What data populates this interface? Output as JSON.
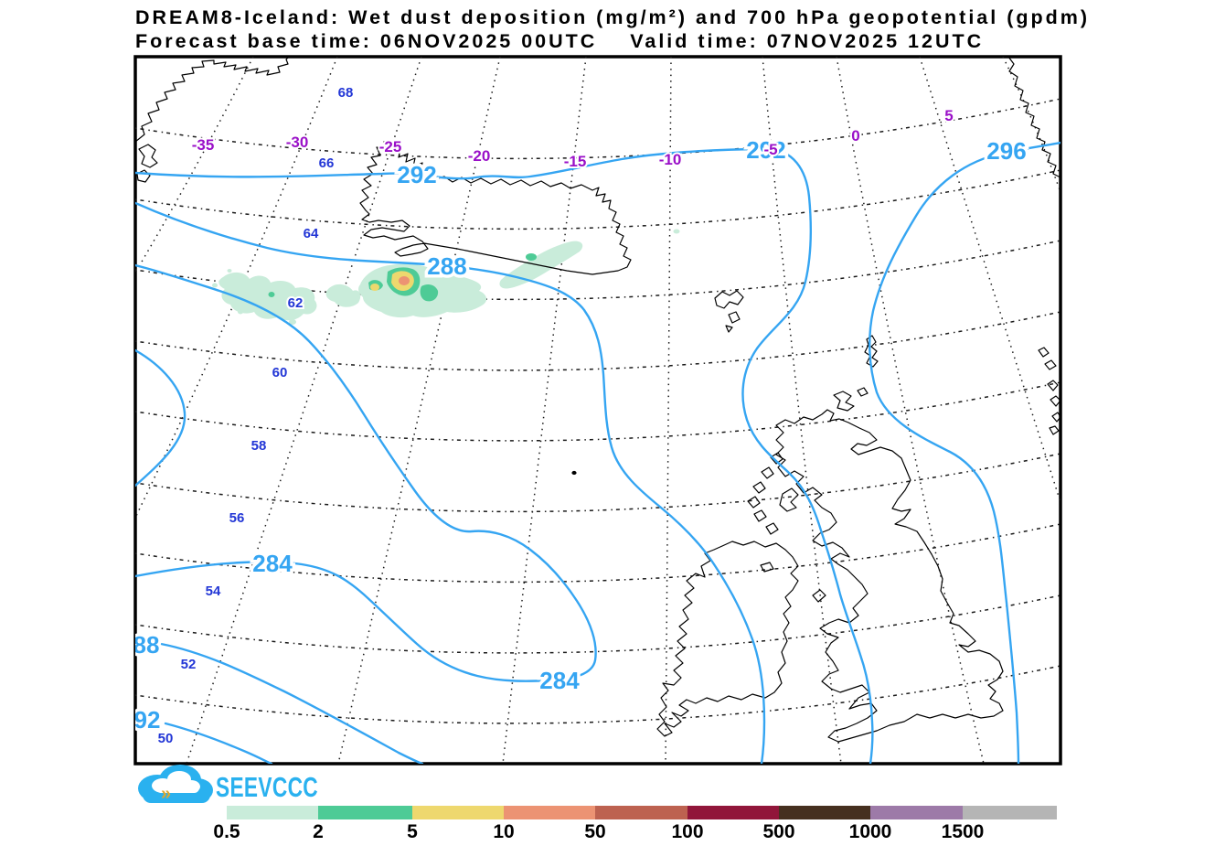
{
  "title": {
    "line1": "DREAM8-Iceland: Wet dust deposition (mg/m²) and 700 hPa geopotential (gpdm)",
    "line2": "Forecast base time: 06NOV2025 00UTC    Valid time: 07NOV2025 12UTC"
  },
  "map": {
    "latitude_labels": [
      "68",
      "66",
      "64",
      "62",
      "60",
      "58",
      "56",
      "54",
      "52",
      "50"
    ],
    "longitude_labels": [
      "-35",
      "-30",
      "-25",
      "-20",
      "-15",
      "-10",
      "-5",
      "0",
      "5"
    ],
    "contour_labels": [
      "292",
      "288",
      "292",
      "296",
      "284",
      "284",
      "88",
      "92"
    ],
    "contour_color": "#35a5f2",
    "latitude_label_color": "#2236d6",
    "longitude_label_color": "#9a10c8"
  },
  "logo": {
    "text": "SEEVCCC",
    "color": "#2ab1ef"
  },
  "colorbar": {
    "unit": "mg/m²",
    "tick_labels": [
      "0.5",
      "2",
      "5",
      "10",
      "50",
      "100",
      "500",
      "1000",
      "1500"
    ],
    "colors": [
      "#c9ecda",
      "#4ecb96",
      "#eed86e",
      "#ec9373",
      "#bd6250",
      "#91163a",
      "#46301f",
      "#9d7aa8",
      "#b5b5b5"
    ]
  },
  "chart_data": {
    "type": "heatmap",
    "title": "DREAM8-Iceland: Wet dust deposition (mg/m²) and 700 hPa geopotential (gpdm)",
    "forecast_base_time": "06NOV2025 00UTC",
    "valid_time": "07NOV2025 12UTC",
    "variable": "Wet dust deposition",
    "variable_unit": "mg/m²",
    "overlay": "700 hPa geopotential",
    "overlay_unit": "gpdm",
    "deposition_levels": [
      0.5,
      2,
      5,
      10,
      50,
      100,
      500,
      1000,
      1500
    ],
    "level_colors": [
      "#c9ecda",
      "#4ecb96",
      "#eed86e",
      "#ec9373",
      "#bd6250",
      "#91163a",
      "#46301f",
      "#9d7aa8",
      "#b5b5b5"
    ],
    "geopotential_contour_values": [
      284,
      288,
      292,
      296
    ],
    "lat_ticks": [
      68,
      66,
      64,
      62,
      60,
      58,
      56,
      54,
      52,
      50
    ],
    "lon_ticks": [
      -35,
      -30,
      -25,
      -20,
      -15,
      -10,
      -5,
      0,
      5
    ],
    "deposition_features": [
      {
        "location": "ocean band south of Iceland near 62-64N, 18-30W",
        "peak_category": "10-50 mg/m²",
        "core_categories": [
          "0.5-2",
          "2-5",
          "5-10",
          "10-50"
        ]
      },
      {
        "location": "narrow band extending northeast toward SE Iceland",
        "peak_category": "0.5-2 mg/m²"
      }
    ],
    "legend_position": "bottom",
    "grid": "dotted lat/lon graticule",
    "region": "North Atlantic: Greenland edge, Iceland, Faroes, British Isles, Norway edge"
  }
}
